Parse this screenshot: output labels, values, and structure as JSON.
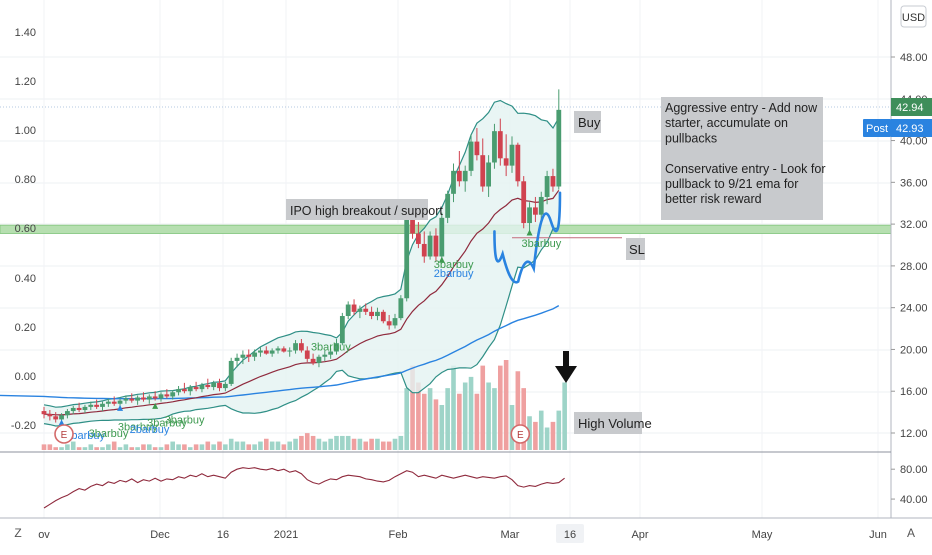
{
  "chart_data": {
    "type": "candlestick",
    "currency": "USD",
    "x_ticks": [
      "ov",
      "Dec",
      "16",
      "2021",
      "Feb",
      "Mar",
      "16",
      "Apr",
      "May",
      "Jun"
    ],
    "highlighted_x_tick": "16",
    "left_axis": {
      "ticks": [
        "1.40",
        "1.20",
        "1.00",
        "0.80",
        "0.60",
        "0.40",
        "0.20",
        "0.00",
        "-0.20"
      ]
    },
    "right_axis": {
      "ticks": [
        "48.00",
        "44.00",
        "40.00",
        "36.00",
        "32.00",
        "28.00",
        "24.00",
        "20.00",
        "16.00",
        "12.00"
      ],
      "range": [
        10.2,
        50.0
      ]
    },
    "osc_axis": {
      "ticks": [
        "80.00",
        "40.00"
      ],
      "range": [
        20,
        95
      ]
    },
    "price_labels": [
      {
        "value": 42.94,
        "text": "42.94",
        "color": "#3e8e5a"
      },
      {
        "value": 42.93,
        "prefix": "Post",
        "text": "42.93",
        "color": "#2a83e0"
      }
    ],
    "support_zone": [
      31.1,
      31.9
    ],
    "sl_level": 30.7,
    "cup_points": [
      [
        0.0,
        31.3
      ],
      [
        2.0,
        27.0
      ],
      [
        3.8,
        26.0
      ],
      [
        5.8,
        29.5
      ],
      [
        8.0,
        35.0
      ]
    ],
    "candles_x_start": 0,
    "candles": [
      {
        "o": 14.1,
        "h": 14.5,
        "l": 13.4,
        "c": 13.8
      },
      {
        "o": 13.8,
        "h": 14.2,
        "l": 13.2,
        "c": 13.6
      },
      {
        "o": 13.6,
        "h": 14.0,
        "l": 13.0,
        "c": 13.3
      },
      {
        "o": 13.3,
        "h": 13.9,
        "l": 12.9,
        "c": 13.7
      },
      {
        "o": 13.7,
        "h": 14.3,
        "l": 13.4,
        "c": 14.1
      },
      {
        "o": 14.1,
        "h": 14.6,
        "l": 13.8,
        "c": 14.4
      },
      {
        "o": 14.4,
        "h": 14.9,
        "l": 14.0,
        "c": 14.2
      },
      {
        "o": 14.2,
        "h": 14.7,
        "l": 13.9,
        "c": 14.5
      },
      {
        "o": 14.5,
        "h": 15.0,
        "l": 14.2,
        "c": 14.7
      },
      {
        "o": 14.7,
        "h": 15.2,
        "l": 14.3,
        "c": 14.5
      },
      {
        "o": 14.5,
        "h": 15.0,
        "l": 14.1,
        "c": 14.8
      },
      {
        "o": 14.8,
        "h": 15.3,
        "l": 14.5,
        "c": 15.0
      },
      {
        "o": 15.0,
        "h": 15.5,
        "l": 14.6,
        "c": 14.8
      },
      {
        "o": 14.8,
        "h": 15.3,
        "l": 14.4,
        "c": 15.1
      },
      {
        "o": 15.1,
        "h": 15.6,
        "l": 14.8,
        "c": 15.3
      },
      {
        "o": 15.3,
        "h": 15.8,
        "l": 14.9,
        "c": 15.1
      },
      {
        "o": 15.1,
        "h": 15.6,
        "l": 14.7,
        "c": 15.4
      },
      {
        "o": 15.4,
        "h": 15.9,
        "l": 15.0,
        "c": 15.2
      },
      {
        "o": 15.2,
        "h": 15.7,
        "l": 14.8,
        "c": 15.5
      },
      {
        "o": 15.5,
        "h": 16.0,
        "l": 15.1,
        "c": 15.3
      },
      {
        "o": 15.3,
        "h": 15.9,
        "l": 15.0,
        "c": 15.7
      },
      {
        "o": 15.7,
        "h": 16.2,
        "l": 15.3,
        "c": 15.5
      },
      {
        "o": 15.5,
        "h": 16.1,
        "l": 15.2,
        "c": 15.9
      },
      {
        "o": 15.9,
        "h": 16.5,
        "l": 15.6,
        "c": 16.2
      },
      {
        "o": 16.2,
        "h": 16.8,
        "l": 15.8,
        "c": 16.0
      },
      {
        "o": 16.0,
        "h": 16.6,
        "l": 15.6,
        "c": 16.4
      },
      {
        "o": 16.4,
        "h": 16.9,
        "l": 16.0,
        "c": 16.2
      },
      {
        "o": 16.2,
        "h": 16.8,
        "l": 15.9,
        "c": 16.6
      },
      {
        "o": 16.6,
        "h": 17.2,
        "l": 16.2,
        "c": 16.4
      },
      {
        "o": 16.4,
        "h": 17.0,
        "l": 16.1,
        "c": 16.8
      },
      {
        "o": 16.8,
        "h": 17.2,
        "l": 16.0,
        "c": 16.3
      },
      {
        "o": 16.3,
        "h": 16.9,
        "l": 16.0,
        "c": 16.7
      },
      {
        "o": 16.7,
        "h": 19.2,
        "l": 16.5,
        "c": 18.9
      },
      {
        "o": 18.9,
        "h": 19.6,
        "l": 18.3,
        "c": 19.2
      },
      {
        "o": 19.2,
        "h": 19.9,
        "l": 18.6,
        "c": 19.5
      },
      {
        "o": 19.5,
        "h": 20.0,
        "l": 18.8,
        "c": 19.3
      },
      {
        "o": 19.3,
        "h": 20.0,
        "l": 18.9,
        "c": 19.7
      },
      {
        "o": 19.7,
        "h": 20.2,
        "l": 19.3,
        "c": 19.9
      },
      {
        "o": 19.9,
        "h": 20.3,
        "l": 19.5,
        "c": 19.6
      },
      {
        "o": 19.6,
        "h": 20.1,
        "l": 19.3,
        "c": 19.9
      },
      {
        "o": 19.9,
        "h": 20.3,
        "l": 19.6,
        "c": 20.1
      },
      {
        "o": 20.1,
        "h": 20.3,
        "l": 19.7,
        "c": 19.8
      },
      {
        "o": 19.8,
        "h": 20.2,
        "l": 19.3,
        "c": 19.9
      },
      {
        "o": 19.9,
        "h": 20.9,
        "l": 19.6,
        "c": 20.6
      },
      {
        "o": 20.6,
        "h": 21.0,
        "l": 19.7,
        "c": 19.9
      },
      {
        "o": 19.9,
        "h": 20.3,
        "l": 18.8,
        "c": 19.1
      },
      {
        "o": 19.1,
        "h": 19.6,
        "l": 18.5,
        "c": 18.7
      },
      {
        "o": 18.7,
        "h": 19.5,
        "l": 18.3,
        "c": 19.3
      },
      {
        "o": 19.3,
        "h": 19.9,
        "l": 18.9,
        "c": 19.5
      },
      {
        "o": 19.5,
        "h": 20.1,
        "l": 19.1,
        "c": 19.8
      },
      {
        "o": 19.8,
        "h": 21.0,
        "l": 19.5,
        "c": 20.6
      },
      {
        "o": 20.6,
        "h": 23.5,
        "l": 20.4,
        "c": 23.2
      },
      {
        "o": 23.2,
        "h": 24.6,
        "l": 22.9,
        "c": 24.3
      },
      {
        "o": 24.3,
        "h": 24.8,
        "l": 23.3,
        "c": 23.6
      },
      {
        "o": 23.6,
        "h": 24.2,
        "l": 23.0,
        "c": 23.9
      },
      {
        "o": 23.9,
        "h": 24.4,
        "l": 23.3,
        "c": 23.6
      },
      {
        "o": 23.6,
        "h": 24.1,
        "l": 22.9,
        "c": 23.2
      },
      {
        "o": 23.2,
        "h": 24.0,
        "l": 22.8,
        "c": 23.6
      },
      {
        "o": 23.6,
        "h": 23.8,
        "l": 22.5,
        "c": 22.7
      },
      {
        "o": 22.7,
        "h": 23.3,
        "l": 21.9,
        "c": 22.3
      },
      {
        "o": 22.3,
        "h": 23.4,
        "l": 22.0,
        "c": 23.0
      },
      {
        "o": 23.0,
        "h": 25.2,
        "l": 22.8,
        "c": 24.9
      },
      {
        "o": 24.9,
        "h": 33.0,
        "l": 24.6,
        "c": 32.6
      },
      {
        "o": 32.6,
        "h": 34.2,
        "l": 30.6,
        "c": 31.1
      },
      {
        "o": 31.1,
        "h": 32.2,
        "l": 29.7,
        "c": 30.1
      },
      {
        "o": 30.1,
        "h": 31.3,
        "l": 28.3,
        "c": 28.9
      },
      {
        "o": 28.9,
        "h": 31.3,
        "l": 28.6,
        "c": 30.9
      },
      {
        "o": 30.9,
        "h": 31.6,
        "l": 28.4,
        "c": 28.9
      },
      {
        "o": 28.9,
        "h": 33.1,
        "l": 28.6,
        "c": 32.6
      },
      {
        "o": 32.6,
        "h": 35.2,
        "l": 32.1,
        "c": 34.9
      },
      {
        "o": 34.9,
        "h": 37.8,
        "l": 34.1,
        "c": 37.1
      },
      {
        "o": 37.1,
        "h": 39.0,
        "l": 35.6,
        "c": 36.1
      },
      {
        "o": 36.1,
        "h": 37.6,
        "l": 35.1,
        "c": 37.1
      },
      {
        "o": 37.1,
        "h": 40.6,
        "l": 36.6,
        "c": 39.9
      },
      {
        "o": 39.9,
        "h": 41.2,
        "l": 38.1,
        "c": 38.6
      },
      {
        "o": 38.6,
        "h": 40.2,
        "l": 35.1,
        "c": 35.6
      },
      {
        "o": 35.6,
        "h": 38.6,
        "l": 34.6,
        "c": 37.9
      },
      {
        "o": 37.9,
        "h": 41.6,
        "l": 37.3,
        "c": 40.9
      },
      {
        "o": 40.9,
        "h": 42.1,
        "l": 37.6,
        "c": 38.3
      },
      {
        "o": 38.3,
        "h": 40.6,
        "l": 36.6,
        "c": 37.6
      },
      {
        "o": 37.6,
        "h": 40.4,
        "l": 36.9,
        "c": 39.6
      },
      {
        "o": 39.6,
        "h": 39.8,
        "l": 35.6,
        "c": 36.1
      },
      {
        "o": 36.1,
        "h": 36.6,
        "l": 31.6,
        "c": 32.1
      },
      {
        "o": 32.1,
        "h": 34.1,
        "l": 31.1,
        "c": 33.6
      },
      {
        "o": 33.6,
        "h": 34.6,
        "l": 32.2,
        "c": 32.9
      },
      {
        "o": 32.9,
        "h": 35.1,
        "l": 32.3,
        "c": 34.6
      },
      {
        "o": 34.6,
        "h": 37.1,
        "l": 33.9,
        "c": 36.6
      },
      {
        "o": 36.6,
        "h": 37.3,
        "l": 35.1,
        "c": 35.6
      },
      {
        "o": 35.6,
        "h": 44.9,
        "l": 35.3,
        "c": 42.94
      }
    ],
    "volume_values": [
      2,
      2,
      1,
      1,
      2,
      3,
      1,
      1,
      2,
      1,
      1,
      2,
      3,
      1,
      2,
      1,
      1,
      2,
      2,
      1,
      1,
      2,
      3,
      2,
      2,
      1,
      2,
      2,
      3,
      2,
      3,
      2,
      4,
      3,
      3,
      2,
      2,
      3,
      4,
      3,
      3,
      2,
      3,
      4,
      5,
      6,
      5,
      4,
      3,
      4,
      5,
      5,
      5,
      4,
      4,
      3,
      4,
      4,
      3,
      3,
      4,
      5,
      22,
      30,
      24,
      20,
      22,
      18,
      16,
      22,
      30,
      20,
      24,
      26,
      20,
      30,
      24,
      22,
      30,
      32,
      16,
      28,
      22,
      12,
      10,
      14,
      8,
      10,
      14,
      24
    ],
    "rsi_values": [
      28,
      33,
      38,
      42,
      45,
      50,
      54,
      52,
      57,
      60,
      58,
      63,
      61,
      65,
      63,
      67,
      62,
      66,
      64,
      68,
      64,
      67,
      66,
      70,
      68,
      72,
      70,
      74,
      70,
      72,
      70,
      68,
      76,
      80,
      82,
      81,
      82,
      80,
      79,
      81,
      78,
      80,
      76,
      78,
      74,
      66,
      62,
      60,
      64,
      67,
      66,
      70,
      72,
      71,
      70,
      67,
      66,
      64,
      63,
      65,
      70,
      74,
      78,
      76,
      70,
      72,
      70,
      68,
      72,
      70,
      68,
      70,
      72,
      70,
      68,
      70,
      69,
      68,
      70,
      71,
      66,
      58,
      56,
      58,
      57,
      60,
      62,
      61,
      62,
      68
    ],
    "indicator_labels": [
      {
        "text": "2barbuy",
        "index": 5,
        "value": 11.8,
        "color": "#2a83e0"
      },
      {
        "text": "3barbuy",
        "index": 9,
        "value": 12.0,
        "color": "#3e9a50"
      },
      {
        "text": "3barbuy",
        "index": 14,
        "value": 12.6,
        "color": "#3e9a50"
      },
      {
        "text": "2barbuy",
        "index": 16,
        "value": 12.4,
        "color": "#2a83e0"
      },
      {
        "text": "3barbuy",
        "index": 19,
        "value": 13.0,
        "color": "#3e9a50"
      },
      {
        "text": "3barbuy",
        "index": 22,
        "value": 13.3,
        "color": "#3e9a50"
      },
      {
        "text": "3barbuy",
        "index": 47,
        "value": 20.3,
        "color": "#3e9a50"
      },
      {
        "text": "3barbuy",
        "index": 68,
        "value": 28.2,
        "color": "#3e9a50"
      },
      {
        "text": "2barbuy",
        "index": 68,
        "value": 27.3,
        "color": "#2a83e0"
      },
      {
        "text": "3barbuy",
        "index": 83,
        "value": 30.2,
        "color": "#3e9a50"
      }
    ],
    "buy_triangles": [
      {
        "index": 3,
        "value": 13.0,
        "color": "#2a83e0"
      },
      {
        "index": 13,
        "value": 14.4,
        "color": "#2a83e0"
      },
      {
        "index": 19,
        "value": 14.6,
        "color": "#3e9a50"
      },
      {
        "index": 68,
        "value": 28.6,
        "color": "#3e9a50"
      },
      {
        "index": 83,
        "value": 31.2,
        "color": "#3e9a50"
      }
    ],
    "earnings_markers": [
      {
        "label": "E",
        "index": 0
      },
      {
        "label": "E",
        "index": 78
      }
    ],
    "annotations": {
      "ipo": "IPO high breakout / support",
      "buy": "Buy",
      "sl": "SL",
      "high_volume": "High Volume",
      "note_lines": [
        "Aggressive entry - Add now",
        "starter, accumulate on",
        "pullbacks",
        "",
        "Conservative entry - Look for",
        "pullback to 9/21 ema for",
        "better risk reward"
      ]
    },
    "colors": {
      "up": "#4a9c70",
      "down": "#d0424f",
      "bollinger": "#2f8f86",
      "band_fill": "#e3f2f1",
      "ema": "#8f2a3d",
      "long_ma": "#2a83e0",
      "support": "#b6dfb0",
      "cup": "#2a83e0",
      "volume_up": "#9ed4c8",
      "volume_down": "#efa0a0",
      "rsi": "#8f2a3d"
    },
    "axis_icons": [
      "Z",
      "A"
    ]
  }
}
